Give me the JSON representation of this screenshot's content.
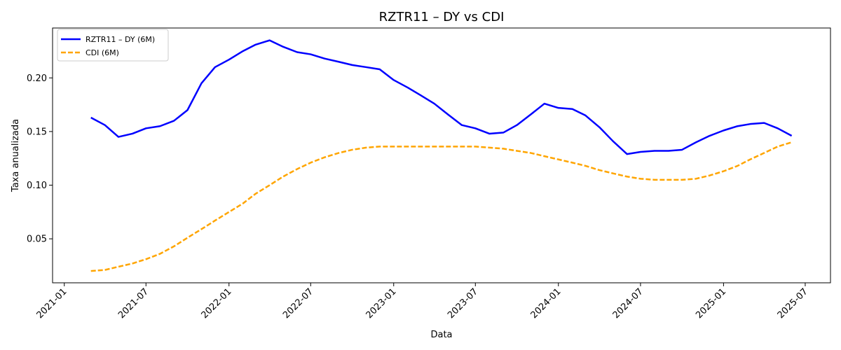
{
  "chart_data": {
    "type": "line",
    "title": "RZTR11 – DY vs CDI",
    "xlabel": "Data",
    "ylabel": "Taxa anualizada",
    "x_ticks": [
      "2021-01",
      "2021-07",
      "2022-01",
      "2022-07",
      "2023-01",
      "2023-07",
      "2024-01",
      "2024-07",
      "2025-01",
      "2025-07"
    ],
    "y_ticks": [
      0.05,
      0.1,
      0.15,
      0.2
    ],
    "y_tick_labels": [
      "0.05",
      "0.10",
      "0.15",
      "0.20"
    ],
    "xlim": [
      "2020-12-06",
      "2025-08-26"
    ],
    "ylim": [
      0.009,
      0.2465
    ],
    "grid": false,
    "legend_position": "top-left",
    "x": [
      "2021-03",
      "2021-04",
      "2021-05",
      "2021-06",
      "2021-07",
      "2021-08",
      "2021-09",
      "2021-10",
      "2021-11",
      "2021-12",
      "2022-01",
      "2022-02",
      "2022-03",
      "2022-04",
      "2022-05",
      "2022-06",
      "2022-07",
      "2022-08",
      "2022-09",
      "2022-10",
      "2022-11",
      "2022-12",
      "2023-01",
      "2023-02",
      "2023-03",
      "2023-04",
      "2023-05",
      "2023-06",
      "2023-07",
      "2023-08",
      "2023-09",
      "2023-10",
      "2023-11",
      "2023-12",
      "2024-01",
      "2024-02",
      "2024-03",
      "2024-04",
      "2024-05",
      "2024-06",
      "2024-07",
      "2024-08",
      "2024-09",
      "2024-10",
      "2024-11",
      "2024-12",
      "2025-01",
      "2025-02",
      "2025-03",
      "2025-04",
      "2025-05",
      "2025-06"
    ],
    "series": [
      {
        "name": "RZTR11 – DY (6M)",
        "color": "#0000ff",
        "style": "solid",
        "values": [
          0.163,
          0.156,
          0.145,
          0.148,
          0.153,
          0.155,
          0.16,
          0.17,
          0.195,
          0.21,
          0.217,
          0.225,
          0.231,
          0.235,
          0.229,
          0.224,
          0.222,
          0.218,
          0.215,
          0.212,
          0.21,
          0.208,
          0.198,
          0.191,
          0.184,
          0.176,
          0.166,
          0.156,
          0.153,
          0.148,
          0.149,
          0.156,
          0.166,
          0.176,
          0.172,
          0.171,
          0.165,
          0.154,
          0.141,
          0.129,
          0.131,
          0.132,
          0.132,
          0.133,
          0.14,
          0.146,
          0.151,
          0.155,
          0.157,
          0.158,
          0.153,
          0.146
        ]
      },
      {
        "name": "CDI (6M)",
        "color": "#ffa500",
        "style": "dashed",
        "values": [
          0.02,
          0.021,
          0.024,
          0.027,
          0.031,
          0.036,
          0.043,
          0.051,
          0.059,
          0.067,
          0.075,
          0.083,
          0.092,
          0.1,
          0.108,
          0.115,
          0.121,
          0.126,
          0.13,
          0.133,
          0.135,
          0.136,
          0.136,
          0.136,
          0.136,
          0.136,
          0.136,
          0.136,
          0.136,
          0.135,
          0.134,
          0.132,
          0.13,
          0.127,
          0.124,
          0.121,
          0.118,
          0.114,
          0.111,
          0.108,
          0.106,
          0.105,
          0.105,
          0.105,
          0.106,
          0.109,
          0.113,
          0.118,
          0.124,
          0.13,
          0.136,
          0.14
        ]
      }
    ]
  }
}
